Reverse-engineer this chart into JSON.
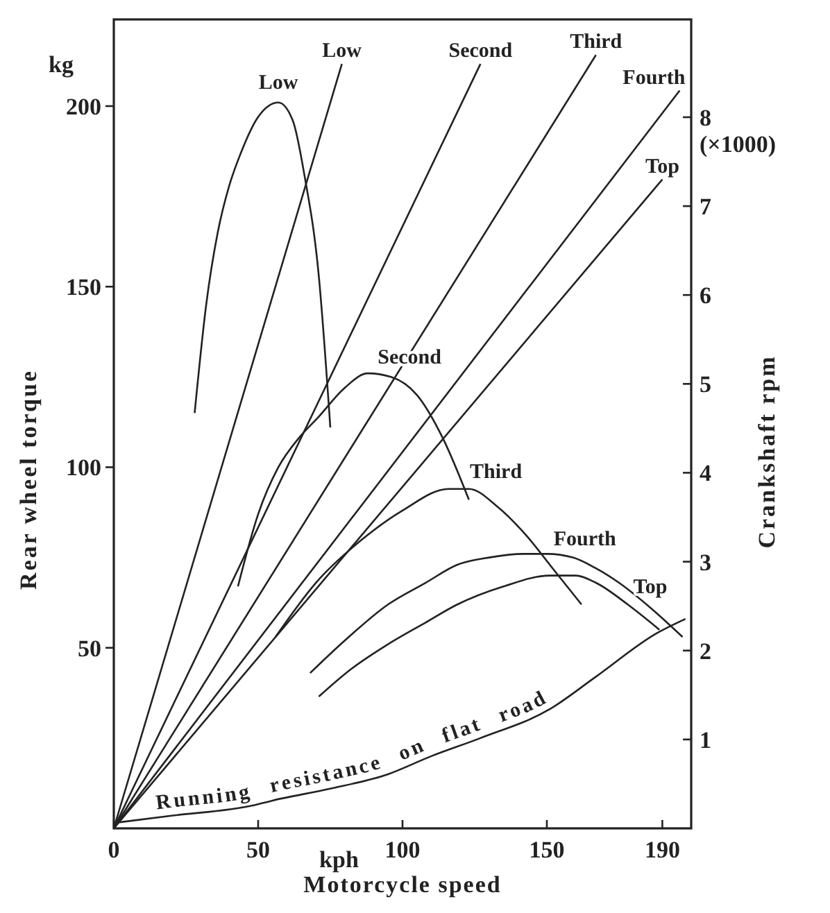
{
  "chart_data": {
    "type": "line",
    "xlabel": "Motorcycle speed",
    "ylabel": "Rear wheel torque",
    "y2label": "Crankshaft rpm",
    "xlim": [
      0,
      200
    ],
    "xticks": [
      0,
      50,
      100,
      150,
      190
    ],
    "ylim": [
      0,
      224
    ],
    "yticks": [
      50,
      100,
      150,
      200
    ],
    "y2lim": [
      0,
      9.1
    ],
    "y2ticks": [
      1,
      2,
      3,
      4,
      5,
      6,
      7,
      8
    ],
    "grid": false,
    "marker": "none",
    "line_style": "solid",
    "annotations": [
      "kg",
      "kph",
      "(×1000)"
    ],
    "series": [
      {
        "name": "Low",
        "axis": "y2",
        "color": "#222222",
        "x": [
          0,
          79
        ],
        "values": [
          0,
          8.6
        ]
      },
      {
        "name": "Second",
        "axis": "y2",
        "color": "#222222",
        "x": [
          0,
          127
        ],
        "values": [
          0,
          8.6
        ]
      },
      {
        "name": "Third",
        "axis": "y2",
        "color": "#222222",
        "x": [
          0,
          167
        ],
        "values": [
          0,
          8.7
        ]
      },
      {
        "name": "Fourth",
        "axis": "y2",
        "color": "#222222",
        "x": [
          0,
          196
        ],
        "values": [
          0,
          8.3
        ]
      },
      {
        "name": "Top",
        "axis": "y2",
        "color": "#222222",
        "x": [
          0,
          190
        ],
        "values": [
          0,
          7.3
        ]
      },
      {
        "name": "Low",
        "color": "#222222",
        "x": [
          28,
          32,
          36,
          40,
          44,
          50,
          57,
          62,
          66,
          71,
          75
        ],
        "values": [
          115,
          145,
          165,
          178,
          187,
          197,
          201,
          196,
          181,
          153,
          111
        ]
      },
      {
        "name": "Second",
        "color": "#222222",
        "x": [
          43,
          50,
          57,
          64,
          71,
          80,
          88,
          96,
          105,
          114,
          123
        ],
        "values": [
          67,
          87,
          100,
          108,
          114,
          122,
          126,
          125,
          120,
          108,
          91
        ]
      },
      {
        "name": "Third",
        "color": "#222222",
        "x": [
          56,
          70,
          86,
          100,
          116,
          123,
          133,
          143,
          152,
          162
        ],
        "values": [
          53,
          68,
          80,
          88,
          94,
          94,
          89,
          81,
          72,
          62
        ]
      },
      {
        "name": "Fourth",
        "color": "#222222",
        "x": [
          68,
          80,
          95,
          108,
          119,
          130,
          142,
          150,
          159,
          167,
          175,
          186,
          197
        ],
        "values": [
          43,
          52,
          62,
          68,
          73,
          75,
          76,
          76,
          75,
          72,
          68,
          61,
          53
        ]
      },
      {
        "name": "Top",
        "color": "#222222",
        "x": [
          71,
          82,
          95,
          108,
          119,
          135,
          151,
          160,
          167,
          178,
          189
        ],
        "values": [
          36.5,
          44,
          51,
          57,
          62,
          67,
          70,
          70,
          68,
          62,
          55
        ]
      },
      {
        "name": "Running resistance on flat road",
        "color": "#222222",
        "x": [
          0,
          20,
          49,
          55,
          75,
          95,
          110,
          127,
          151,
          167,
          188,
          198
        ],
        "values": [
          1.5,
          3.5,
          6.5,
          7.7,
          11,
          15,
          20,
          25,
          33,
          42,
          54,
          58
        ]
      }
    ]
  }
}
